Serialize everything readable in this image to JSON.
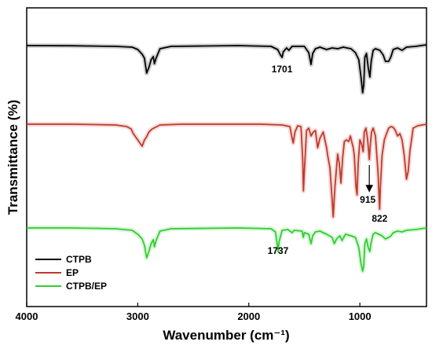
{
  "chart_data": {
    "type": "line",
    "title": "",
    "xlabel": "Wavenumber (cm⁻¹)",
    "ylabel": "Transmittance (%)",
    "xlim": [
      4000,
      400
    ],
    "x_reversed": true,
    "x_ticks": [
      4000,
      3000,
      2000,
      1000
    ],
    "y_ticks_visible": false,
    "legend_position": "bottom-left",
    "grid": false,
    "series": [
      {
        "name": "CTPB",
        "color": "#000000",
        "baseline": 0.0,
        "points": [
          [
            4000,
            0
          ],
          [
            3600,
            -0.2
          ],
          [
            3200,
            -1
          ],
          [
            3050,
            -2
          ],
          [
            3000,
            -5
          ],
          [
            2960,
            -11
          ],
          [
            2940,
            -16
          ],
          [
            2920,
            -35
          ],
          [
            2900,
            -28
          ],
          [
            2880,
            -18
          ],
          [
            2860,
            -14
          ],
          [
            2850,
            -23
          ],
          [
            2835,
            -16
          ],
          [
            2800,
            -4
          ],
          [
            2700,
            -1
          ],
          [
            2400,
            -0.5
          ],
          [
            2100,
            0
          ],
          [
            1800,
            -1
          ],
          [
            1740,
            -5
          ],
          [
            1715,
            -12
          ],
          [
            1701,
            -15
          ],
          [
            1690,
            -8
          ],
          [
            1660,
            -3
          ],
          [
            1640,
            -6
          ],
          [
            1610,
            -1
          ],
          [
            1500,
            -1
          ],
          [
            1460,
            -9
          ],
          [
            1440,
            -24
          ],
          [
            1425,
            -10
          ],
          [
            1400,
            -4
          ],
          [
            1360,
            -2
          ],
          [
            1300,
            -5
          ],
          [
            1250,
            -3
          ],
          [
            1200,
            -4
          ],
          [
            1150,
            -2
          ],
          [
            1080,
            -4
          ],
          [
            1040,
            -9
          ],
          [
            1010,
            -18
          ],
          [
            990,
            -40
          ],
          [
            975,
            -60
          ],
          [
            965,
            -50
          ],
          [
            955,
            -15
          ],
          [
            940,
            -10
          ],
          [
            925,
            -28
          ],
          [
            910,
            -40
          ],
          [
            898,
            -20
          ],
          [
            880,
            -6
          ],
          [
            860,
            -4
          ],
          [
            820,
            -6
          ],
          [
            790,
            -12
          ],
          [
            770,
            -20
          ],
          [
            740,
            -20
          ],
          [
            720,
            -14
          ],
          [
            700,
            -5
          ],
          [
            660,
            -3
          ],
          [
            620,
            -6
          ],
          [
            580,
            -2
          ],
          [
            500,
            -1
          ],
          [
            450,
            0
          ],
          [
            400,
            1
          ]
        ]
      },
      {
        "name": "EP",
        "color": "#c0392b",
        "baseline": 0.0,
        "points": [
          [
            4000,
            0
          ],
          [
            3600,
            0
          ],
          [
            3200,
            -1
          ],
          [
            3100,
            -3
          ],
          [
            3060,
            -6
          ],
          [
            3040,
            -12
          ],
          [
            3000,
            -20
          ],
          [
            2960,
            -28
          ],
          [
            2940,
            -20
          ],
          [
            2920,
            -16
          ],
          [
            2900,
            -10
          ],
          [
            2870,
            -6
          ],
          [
            2800,
            -1
          ],
          [
            2600,
            0
          ],
          [
            2200,
            0
          ],
          [
            1900,
            0
          ],
          [
            1700,
            -1
          ],
          [
            1630,
            -3
          ],
          [
            1610,
            -18
          ],
          [
            1600,
            -24
          ],
          [
            1585,
            -10
          ],
          [
            1560,
            -2
          ],
          [
            1530,
            -3
          ],
          [
            1515,
            -45
          ],
          [
            1508,
            -85
          ],
          [
            1500,
            -60
          ],
          [
            1480,
            -8
          ],
          [
            1460,
            -5
          ],
          [
            1440,
            -15
          ],
          [
            1420,
            -10
          ],
          [
            1400,
            -8
          ],
          [
            1380,
            -30
          ],
          [
            1360,
            -18
          ],
          [
            1330,
            -10
          ],
          [
            1300,
            -30
          ],
          [
            1290,
            -40
          ],
          [
            1270,
            -55
          ],
          [
            1250,
            -95
          ],
          [
            1240,
            -118
          ],
          [
            1225,
            -80
          ],
          [
            1200,
            -38
          ],
          [
            1185,
            -50
          ],
          [
            1170,
            -75
          ],
          [
            1155,
            -42
          ],
          [
            1140,
            -22
          ],
          [
            1120,
            -20
          ],
          [
            1100,
            -22
          ],
          [
            1085,
            -15
          ],
          [
            1060,
            -30
          ],
          [
            1050,
            -40
          ],
          [
            1035,
            -80
          ],
          [
            1025,
            -90
          ],
          [
            1015,
            -50
          ],
          [
            1000,
            -20
          ],
          [
            985,
            -25
          ],
          [
            970,
            -35
          ],
          [
            960,
            -10
          ],
          [
            945,
            -5
          ],
          [
            930,
            -20
          ],
          [
            915,
            -45
          ],
          [
            905,
            -25
          ],
          [
            895,
            -10
          ],
          [
            880,
            -5
          ],
          [
            860,
            -15
          ],
          [
            845,
            -45
          ],
          [
            835,
            -65
          ],
          [
            828,
            -90
          ],
          [
            822,
            -108
          ],
          [
            815,
            -80
          ],
          [
            800,
            -40
          ],
          [
            780,
            -20
          ],
          [
            760,
            -12
          ],
          [
            740,
            -5
          ],
          [
            720,
            -3
          ],
          [
            700,
            -4
          ],
          [
            680,
            -8
          ],
          [
            660,
            -15
          ],
          [
            640,
            -12
          ],
          [
            620,
            -20
          ],
          [
            600,
            -40
          ],
          [
            580,
            -70
          ],
          [
            565,
            -60
          ],
          [
            550,
            -35
          ],
          [
            520,
            -5
          ],
          [
            480,
            -2
          ],
          [
            440,
            -1
          ],
          [
            400,
            0
          ]
        ]
      },
      {
        "name": "CTPB/EP",
        "color": "#33cc33",
        "baseline": 0.0,
        "points": [
          [
            4000,
            0
          ],
          [
            3600,
            0
          ],
          [
            3200,
            -1
          ],
          [
            3050,
            -3
          ],
          [
            3000,
            -8
          ],
          [
            2960,
            -14
          ],
          [
            2940,
            -22
          ],
          [
            2920,
            -38
          ],
          [
            2900,
            -30
          ],
          [
            2880,
            -20
          ],
          [
            2860,
            -15
          ],
          [
            2850,
            -24
          ],
          [
            2835,
            -16
          ],
          [
            2800,
            -4
          ],
          [
            2700,
            -1
          ],
          [
            2400,
            -0.5
          ],
          [
            2100,
            0
          ],
          [
            1800,
            -1
          ],
          [
            1760,
            -5
          ],
          [
            1745,
            -20
          ],
          [
            1737,
            -30
          ],
          [
            1728,
            -18
          ],
          [
            1700,
            -3
          ],
          [
            1650,
            -2
          ],
          [
            1610,
            -6
          ],
          [
            1590,
            -3
          ],
          [
            1520,
            -4
          ],
          [
            1510,
            -12
          ],
          [
            1500,
            -6
          ],
          [
            1460,
            -8
          ],
          [
            1440,
            -20
          ],
          [
            1425,
            -10
          ],
          [
            1400,
            -5
          ],
          [
            1360,
            -4
          ],
          [
            1300,
            -8
          ],
          [
            1250,
            -12
          ],
          [
            1230,
            -20
          ],
          [
            1210,
            -14
          ],
          [
            1180,
            -10
          ],
          [
            1160,
            -16
          ],
          [
            1130,
            -8
          ],
          [
            1080,
            -10
          ],
          [
            1040,
            -12
          ],
          [
            1010,
            -25
          ],
          [
            990,
            -45
          ],
          [
            975,
            -55
          ],
          [
            965,
            -48
          ],
          [
            955,
            -20
          ],
          [
            940,
            -14
          ],
          [
            925,
            -25
          ],
          [
            910,
            -30
          ],
          [
            898,
            -18
          ],
          [
            880,
            -8
          ],
          [
            860,
            -6
          ],
          [
            830,
            -8
          ],
          [
            800,
            -10
          ],
          [
            770,
            -14
          ],
          [
            740,
            -12
          ],
          [
            720,
            -10
          ],
          [
            700,
            -6
          ],
          [
            660,
            -4
          ],
          [
            620,
            -5
          ],
          [
            580,
            -3
          ],
          [
            500,
            -2
          ],
          [
            450,
            -1
          ],
          [
            400,
            0
          ]
        ]
      }
    ],
    "annotations": [
      {
        "text": "1701",
        "x": 1701,
        "series": "CTPB"
      },
      {
        "text": "915",
        "x": 915,
        "series": "EP",
        "arrow": true
      },
      {
        "text": "822",
        "x": 822,
        "series": "EP"
      },
      {
        "text": "1737",
        "x": 1737,
        "series": "CTPB/EP"
      }
    ],
    "ticks_text": [
      "4000",
      "3000",
      "2000",
      "1000"
    ]
  }
}
